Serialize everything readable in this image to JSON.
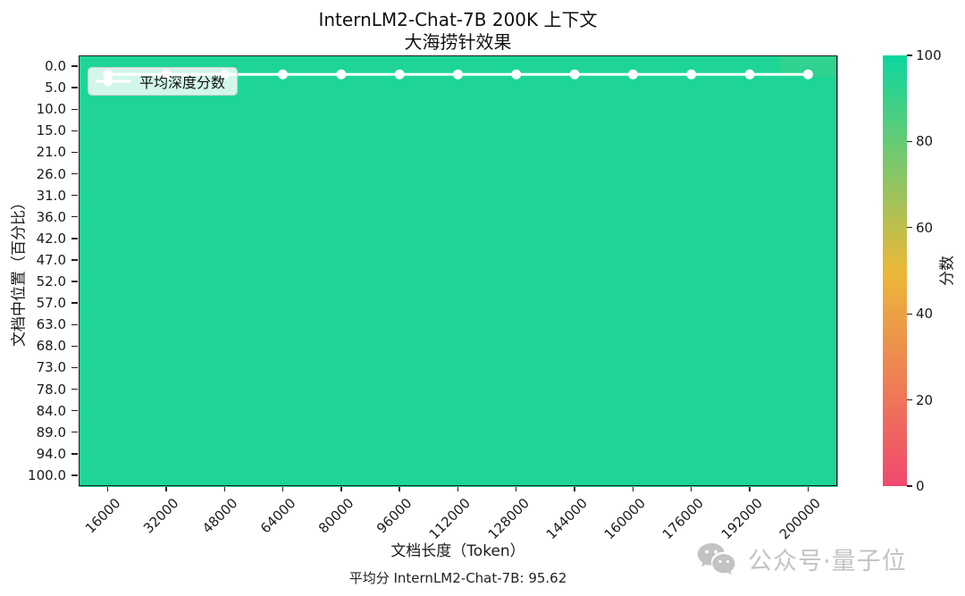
{
  "title": {
    "line1": "InternLM2-Chat-7B 200K 上下文",
    "line2": "大海捞针效果"
  },
  "legend": {
    "label": "平均深度分数"
  },
  "axes": {
    "x_label": "文档长度（Token）",
    "y_label": "文档中位置（百分比）",
    "x_ticks": [
      "16000",
      "32000",
      "48000",
      "64000",
      "80000",
      "96000",
      "112000",
      "128000",
      "144000",
      "160000",
      "176000",
      "192000",
      "200000"
    ],
    "y_ticks": [
      "0.0",
      "5.0",
      "10.0",
      "15.0",
      "21.0",
      "26.0",
      "31.0",
      "36.0",
      "42.0",
      "47.0",
      "52.0",
      "57.0",
      "63.0",
      "68.0",
      "73.0",
      "78.0",
      "84.0",
      "89.0",
      "94.0",
      "100.0"
    ]
  },
  "colorbar": {
    "label": "分数",
    "ticks": [
      "100",
      "80",
      "60",
      "40",
      "20",
      "0"
    ],
    "min": 0,
    "max": 100
  },
  "caption": {
    "text": "平均分 InternLM2-Chat-7B: 95.62"
  },
  "watermark": {
    "icon": "wechat-icon",
    "text": "公众号·量子位"
  },
  "chart_data": {
    "type": "heatmap",
    "title": "InternLM2-Chat-7B 200K 上下文 大海捞针效果",
    "xlabel": "文档长度（Token）",
    "ylabel": "文档中位置（百分比）",
    "x": [
      16000,
      32000,
      48000,
      64000,
      80000,
      96000,
      112000,
      128000,
      144000,
      160000,
      176000,
      192000,
      200000
    ],
    "y_depth_percent": [
      0,
      5,
      10,
      15,
      21,
      26,
      31,
      36,
      42,
      47,
      52,
      57,
      63,
      68,
      73,
      78,
      84,
      89,
      94,
      100
    ],
    "value_range": [
      0,
      100
    ],
    "colormap_stops": [
      "#F0496E",
      "#EBB839",
      "#0CD79F"
    ],
    "cells_fill_value": 96,
    "cell_overrides": [
      {
        "row": 0,
        "col": 12,
        "value": 92
      }
    ],
    "series": [
      {
        "name": "平均深度分数",
        "type": "line",
        "color": "#ffffff",
        "values": [
          95.6,
          95.6,
          95.6,
          95.6,
          95.6,
          95.6,
          95.6,
          95.6,
          95.6,
          95.6,
          95.6,
          95.6,
          95.6
        ]
      }
    ],
    "average_score": 95.62,
    "colorbar_label": "分数",
    "legend_position": "upper left",
    "grid": false
  }
}
